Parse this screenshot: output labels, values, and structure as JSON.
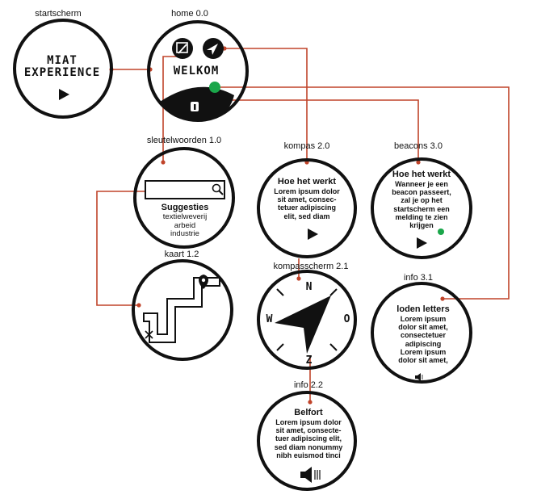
{
  "screens": {
    "startscherm": {
      "label": "startscherm",
      "logo_line1": "MIAT",
      "logo_line2": "EXPERIENCE"
    },
    "home": {
      "label": "home 0.0",
      "welcome": "WELKOM"
    },
    "sleutelwoorden": {
      "label": "sleutelwoorden 1.0",
      "title": "Suggesties",
      "items": [
        "textielweverij",
        "arbeid",
        "industrie"
      ]
    },
    "kaart": {
      "label": "kaart 1.2"
    },
    "kompas": {
      "label": "kompas 2.0",
      "title": "Hoe het werkt",
      "lines": [
        "Lorem ipsum dolor",
        "sit amet, consec-",
        "tetuer adipiscing",
        "elit, sed diam"
      ]
    },
    "kompasscherm": {
      "label": "kompasscherm 2.1",
      "north": "N",
      "east": "O",
      "south": "Z",
      "west": "W"
    },
    "info22": {
      "label": "info 2.2",
      "title": "Belfort",
      "lines": [
        "Lorem ipsum dolor",
        "sit amet, consecte-",
        "tuer adipiscing elit,",
        "sed diam nonummy",
        "nibh euismod tinci"
      ]
    },
    "beacons": {
      "label": "beacons 3.0",
      "title": "Hoe het werkt",
      "lines": [
        "Wanneer je een",
        "beacon passeert,",
        "zal je op het",
        "startscherm een",
        "melding te zien",
        "krijgen"
      ]
    },
    "info31": {
      "label": "info 3.1",
      "title": "loden letters",
      "lines": [
        "Lorem ipsum",
        "dolor sit amet,",
        "consectetuer",
        "adipiscing",
        "Lorem ipsum",
        "dolor sit amet,"
      ]
    }
  },
  "colors": {
    "link": "#c0442a",
    "ring": "#111111",
    "beacon": "#1aa64a"
  }
}
